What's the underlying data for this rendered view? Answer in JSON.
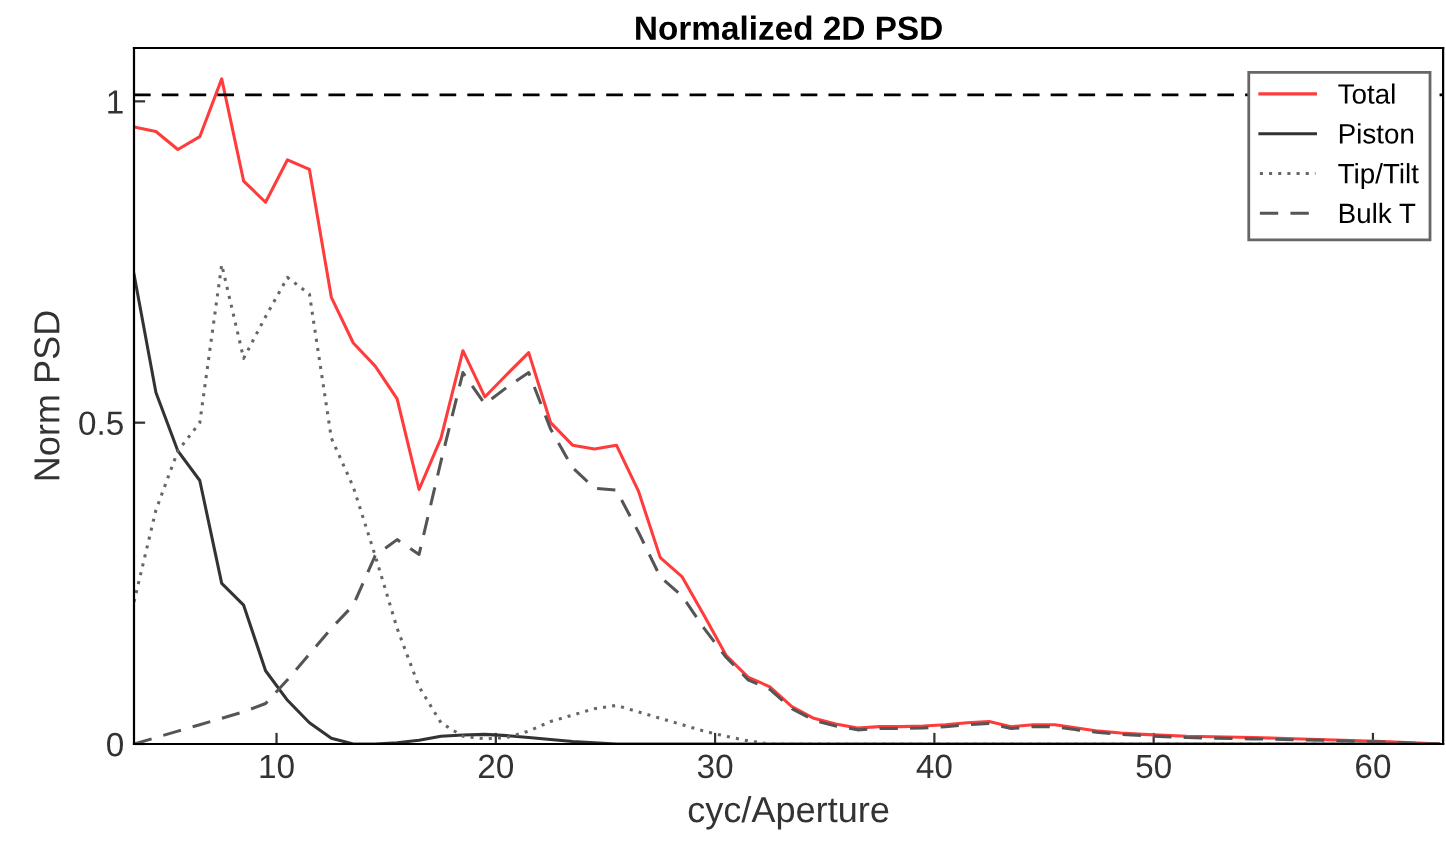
{
  "chart_data": {
    "type": "line",
    "title": "Normalized 2D PSD",
    "xlabel": "cyc/Aperture",
    "ylabel": "Norm PSD",
    "x": [
      3.5,
      4.5,
      5.5,
      6.5,
      7.5,
      8.5,
      9.5,
      10.5,
      11.5,
      12.5,
      13.5,
      14.5,
      15.5,
      16.5,
      17.5,
      18.5,
      19.5,
      20.5,
      21.5,
      22.5,
      23.5,
      24.5,
      25.5,
      26.5,
      27.5,
      28.5,
      29.5,
      30.5,
      31.5,
      32.5,
      33.5,
      34.5,
      35.5,
      36.5,
      37.5,
      38.5,
      39.5,
      40.5,
      41.5,
      42.5,
      43.5,
      44.5,
      45.5,
      46.5,
      47.5,
      48.5,
      49.5,
      51.5,
      54.5,
      57.5,
      60.5,
      63
    ],
    "series": [
      {
        "name": "Total",
        "color": "#ff3b3b",
        "line_style": "solid",
        "values": [
          0.96,
          0.953,
          0.925,
          0.945,
          1.035,
          0.876,
          0.843,
          0.909,
          0.894,
          0.695,
          0.624,
          0.588,
          0.537,
          0.396,
          0.476,
          0.612,
          0.54,
          0.575,
          0.609,
          0.5,
          0.465,
          0.459,
          0.465,
          0.394,
          0.29,
          0.26,
          0.2,
          0.138,
          0.104,
          0.089,
          0.058,
          0.04,
          0.031,
          0.025,
          0.027,
          0.027,
          0.028,
          0.03,
          0.033,
          0.035,
          0.027,
          0.03,
          0.03,
          0.025,
          0.02,
          0.017,
          0.015,
          0.012,
          0.01,
          0.007,
          0.004,
          0
        ]
      },
      {
        "name": "Piston",
        "color": "#333333",
        "line_style": "solid",
        "values": [
          0.731,
          0.547,
          0.456,
          0.41,
          0.25,
          0.216,
          0.114,
          0.068,
          0.033,
          0.009,
          0,
          0,
          0.002,
          0.006,
          0.012,
          0.014,
          0.015,
          0.013,
          0.01,
          0.007,
          0.004,
          0.002,
          0,
          0,
          0,
          0,
          0,
          0,
          0,
          0,
          0,
          0,
          0,
          0,
          0,
          0,
          0,
          0,
          0,
          0,
          0,
          0,
          0,
          0,
          0,
          0,
          0,
          0,
          0,
          0,
          0,
          0
        ]
      },
      {
        "name": "Tip/Tilt",
        "color": "#666666",
        "line_style": "dotted",
        "values": [
          0.221,
          0.364,
          0.456,
          0.5,
          0.746,
          0.6,
          0.665,
          0.726,
          0.7,
          0.476,
          0.4,
          0.293,
          0.18,
          0.089,
          0.033,
          0.012,
          0.008,
          0.01,
          0.02,
          0.035,
          0.045,
          0.055,
          0.06,
          0.05,
          0.04,
          0.03,
          0.02,
          0.012,
          0.005,
          0,
          0,
          0,
          0,
          0,
          0,
          0,
          0,
          0,
          0,
          0,
          0,
          0,
          0,
          0,
          0,
          0,
          0,
          0,
          0,
          0,
          0,
          0
        ]
      },
      {
        "name": "Bulk T",
        "color": "#555555",
        "line_style": "dashed",
        "values": [
          0,
          0.01,
          0.02,
          0.03,
          0.04,
          0.05,
          0.063,
          0.1,
          0.14,
          0.18,
          0.216,
          0.293,
          0.318,
          0.295,
          0.44,
          0.578,
          0.529,
          0.555,
          0.578,
          0.49,
          0.43,
          0.398,
          0.395,
          0.33,
          0.26,
          0.23,
          0.18,
          0.135,
          0.1,
          0.085,
          0.055,
          0.037,
          0.028,
          0.022,
          0.024,
          0.024,
          0.025,
          0.027,
          0.03,
          0.032,
          0.024,
          0.027,
          0.027,
          0.022,
          0.018,
          0.015,
          0.013,
          0.01,
          0.008,
          0.006,
          0.003,
          0
        ]
      }
    ],
    "ref_lines": [
      {
        "axis": "y",
        "value": 1.01,
        "label": null,
        "color": "#000000",
        "line_style": "dashed"
      }
    ],
    "xlim": [
      3.5,
      63.2
    ],
    "ylim": [
      0,
      1.083
    ],
    "xticks": [
      10,
      20,
      30,
      40,
      50,
      60
    ],
    "yticks": [
      0,
      {
        "value": 0.5,
        "label": "0.5"
      },
      1
    ],
    "grid": false,
    "legend": "top right",
    "marker": "none"
  }
}
